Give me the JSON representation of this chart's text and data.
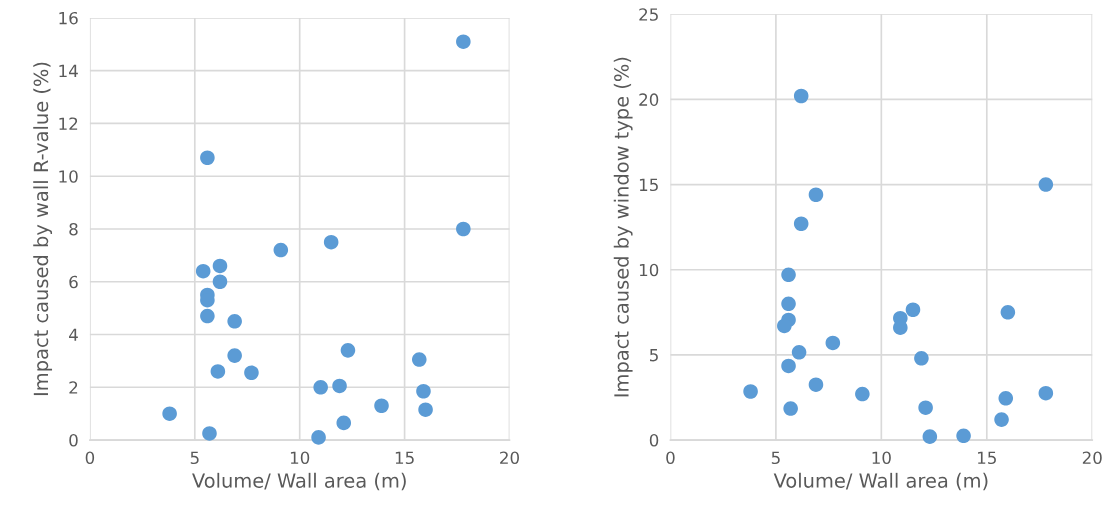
{
  "chart_data": [
    {
      "type": "scatter",
      "xlabel": "Volume/ Wall area (m)",
      "ylabel": "Impact caused by wall R-value (%)",
      "xlim": [
        0,
        20
      ],
      "xticks": [
        0,
        5,
        10,
        15,
        20
      ],
      "ylim": [
        0,
        16
      ],
      "yticks": [
        0,
        2,
        4,
        6,
        8,
        10,
        12,
        14,
        16
      ],
      "grid": true,
      "marker": "circle",
      "legend": false,
      "series": [
        {
          "color": "#5b9bd5",
          "x": [
            3.8,
            5.4,
            5.6,
            5.6,
            5.6,
            5.7,
            6.1,
            6.2,
            6.2,
            6.9,
            6.9,
            7.7,
            9.1,
            10.9,
            11.0,
            11.5,
            11.9,
            12.1,
            12.3,
            13.9,
            15.7,
            15.9,
            16.0
          ],
          "values": [
            1.0,
            6.4,
            5.5,
            5.3,
            4.7,
            0.25,
            2.6,
            6.6,
            6.0,
            4.5,
            3.2,
            2.55,
            7.2,
            0.1,
            2.0,
            7.5,
            2.05,
            0.65,
            3.4,
            1.3,
            3.05,
            1.85,
            1.15
          ]
        },
        {
          "color": "#5b9bd5",
          "x": [
            5.6,
            17.8,
            17.8
          ],
          "values": [
            10.7,
            15.1,
            8.0
          ]
        }
      ]
    },
    {
      "type": "scatter",
      "xlabel": "Volume/ Wall area (m)",
      "ylabel": "Impact caused by window type (%)",
      "xlim": [
        0,
        20
      ],
      "xticks": [
        0,
        5,
        10,
        15,
        20
      ],
      "ylim": [
        0,
        25
      ],
      "yticks": [
        0,
        5,
        10,
        15,
        20,
        25
      ],
      "grid": true,
      "marker": "circle",
      "legend": false,
      "series": [
        {
          "color": "#5b9bd5",
          "x": [
            6.2,
            17.8,
            6.9,
            6.2,
            5.6,
            5.6,
            5.6,
            5.4,
            11.5,
            10.9,
            10.9,
            16.0,
            6.1,
            7.7,
            5.6,
            11.9,
            6.9,
            3.8,
            9.1,
            5.7,
            12.1,
            17.8,
            15.9,
            15.7,
            12.3,
            13.9
          ],
          "values": [
            20.2,
            15.0,
            14.4,
            12.7,
            9.7,
            8.0,
            7.05,
            6.7,
            7.65,
            7.15,
            6.6,
            7.5,
            5.15,
            5.7,
            4.35,
            4.8,
            3.25,
            2.85,
            2.7,
            1.85,
            1.9,
            2.75,
            2.45,
            1.2,
            0.2,
            0.25
          ]
        }
      ]
    }
  ]
}
